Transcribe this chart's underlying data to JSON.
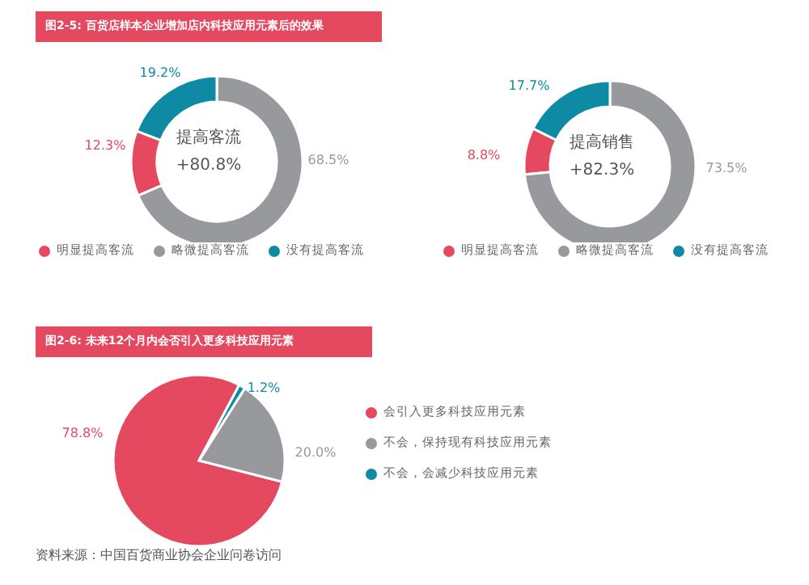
{
  "chart_data": [
    {
      "type": "donut",
      "title": "图2-5: 百货店样本企业增加店内科技应用元素后的效果",
      "categories": [
        "明显提高客流",
        "略微提高客流",
        "没有提高客流"
      ],
      "values": [
        12.3,
        68.5,
        19.2
      ],
      "value_labels": [
        "12.3%",
        "68.5%",
        "19.2%"
      ],
      "colors": [
        "#e5495f",
        "#97999c",
        "#0e8aa5"
      ],
      "legend": "bottom",
      "annotations": [
        "提高客流",
        "+80.8%"
      ]
    },
    {
      "type": "donut",
      "categories": [
        "明显提高客流",
        "略微提高客流",
        "没有提高客流"
      ],
      "values": [
        8.8,
        73.5,
        17.7
      ],
      "value_labels": [
        "8.8%",
        "73.5%",
        "17.7%"
      ],
      "colors": [
        "#e5495f",
        "#97999c",
        "#0e8aa5"
      ],
      "legend": "bottom",
      "annotations": [
        "提高销售",
        "+82.3%"
      ]
    },
    {
      "type": "pie",
      "title": "图2-6: 未来12个月内会否引入更多科技应用元素",
      "categories": [
        "会引入更多科技应用元素",
        "不会，保持现有科技应用元素",
        "不会，会减少科技应用元素"
      ],
      "values": [
        78.8,
        20.0,
        1.2
      ],
      "value_labels": [
        "78.8%",
        "20.0%",
        "1.2%"
      ],
      "colors": [
        "#e5495f",
        "#97999c",
        "#0e8aa5"
      ],
      "legend": "right",
      "annotations": [
        "资料来源：中国百货商业协会企业问卷访问"
      ]
    }
  ]
}
